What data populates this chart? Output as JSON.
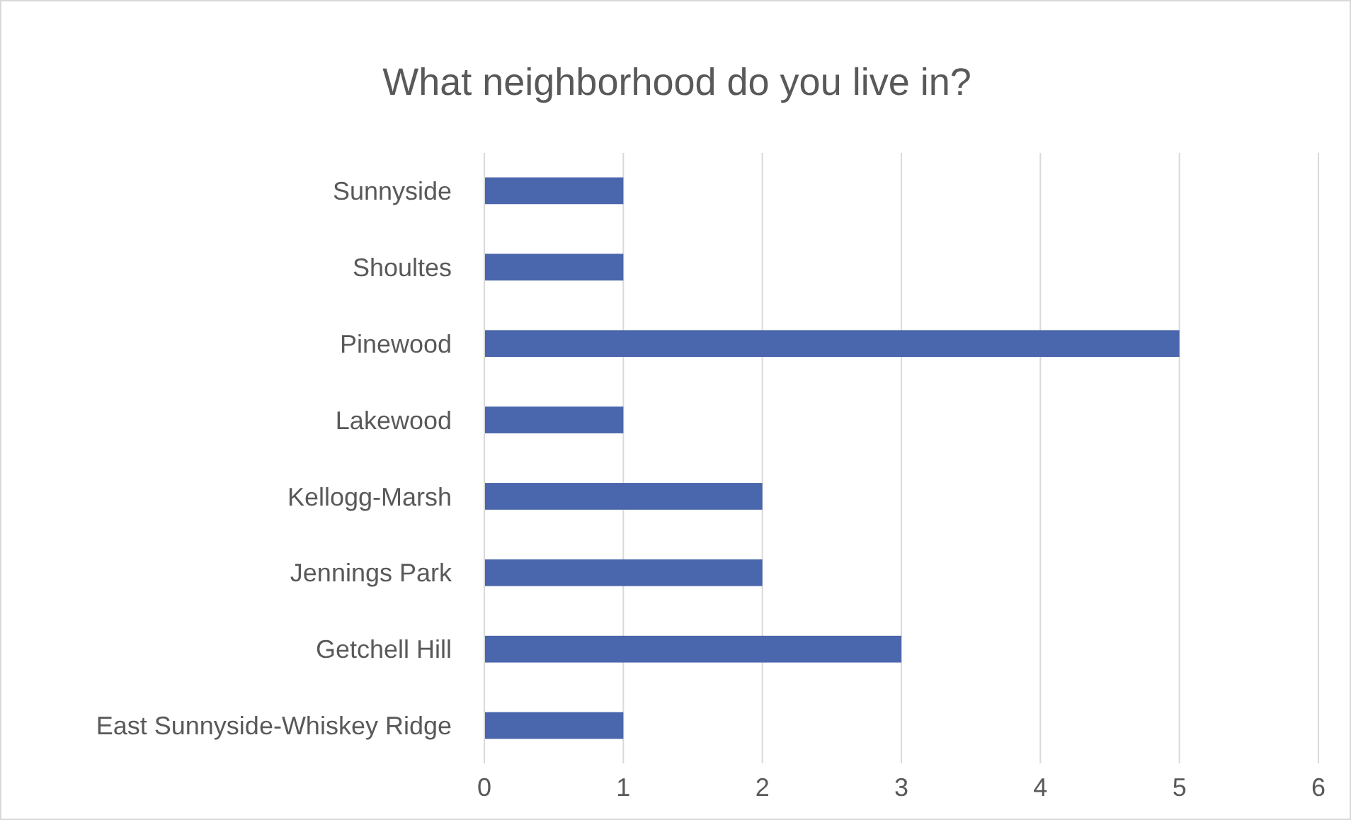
{
  "chart_data": {
    "type": "bar",
    "orientation": "horizontal",
    "title": "What neighborhood do you live in?",
    "categories": [
      "Sunnyside",
      "Shoultes",
      "Pinewood",
      "Lakewood",
      "Kellogg-Marsh",
      "Jennings Park",
      "Getchell Hill",
      "East Sunnyside-Whiskey Ridge"
    ],
    "values": [
      1,
      1,
      5,
      1,
      2,
      2,
      3,
      1
    ],
    "color": "#4a66ac",
    "xlim": [
      0,
      6
    ],
    "xticks": [
      0,
      1,
      2,
      3,
      4,
      5,
      6
    ],
    "grid": "x"
  }
}
